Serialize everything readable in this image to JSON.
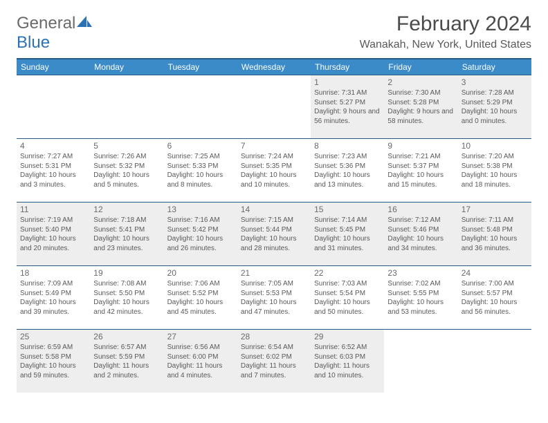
{
  "logo": {
    "text1": "General",
    "text2": "Blue"
  },
  "title": "February 2024",
  "location": "Wanakah, New York, United States",
  "headers": [
    "Sunday",
    "Monday",
    "Tuesday",
    "Wednesday",
    "Thursday",
    "Friday",
    "Saturday"
  ],
  "weeks": [
    [
      null,
      null,
      null,
      null,
      {
        "d": "1",
        "r": "7:31 AM",
        "s": "5:27 PM",
        "dl": "9 hours and 56 minutes."
      },
      {
        "d": "2",
        "r": "7:30 AM",
        "s": "5:28 PM",
        "dl": "9 hours and 58 minutes."
      },
      {
        "d": "3",
        "r": "7:28 AM",
        "s": "5:29 PM",
        "dl": "10 hours and 0 minutes."
      }
    ],
    [
      {
        "d": "4",
        "r": "7:27 AM",
        "s": "5:31 PM",
        "dl": "10 hours and 3 minutes."
      },
      {
        "d": "5",
        "r": "7:26 AM",
        "s": "5:32 PM",
        "dl": "10 hours and 5 minutes."
      },
      {
        "d": "6",
        "r": "7:25 AM",
        "s": "5:33 PM",
        "dl": "10 hours and 8 minutes."
      },
      {
        "d": "7",
        "r": "7:24 AM",
        "s": "5:35 PM",
        "dl": "10 hours and 10 minutes."
      },
      {
        "d": "8",
        "r": "7:23 AM",
        "s": "5:36 PM",
        "dl": "10 hours and 13 minutes."
      },
      {
        "d": "9",
        "r": "7:21 AM",
        "s": "5:37 PM",
        "dl": "10 hours and 15 minutes."
      },
      {
        "d": "10",
        "r": "7:20 AM",
        "s": "5:38 PM",
        "dl": "10 hours and 18 minutes."
      }
    ],
    [
      {
        "d": "11",
        "r": "7:19 AM",
        "s": "5:40 PM",
        "dl": "10 hours and 20 minutes."
      },
      {
        "d": "12",
        "r": "7:18 AM",
        "s": "5:41 PM",
        "dl": "10 hours and 23 minutes."
      },
      {
        "d": "13",
        "r": "7:16 AM",
        "s": "5:42 PM",
        "dl": "10 hours and 26 minutes."
      },
      {
        "d": "14",
        "r": "7:15 AM",
        "s": "5:44 PM",
        "dl": "10 hours and 28 minutes."
      },
      {
        "d": "15",
        "r": "7:14 AM",
        "s": "5:45 PM",
        "dl": "10 hours and 31 minutes."
      },
      {
        "d": "16",
        "r": "7:12 AM",
        "s": "5:46 PM",
        "dl": "10 hours and 34 minutes."
      },
      {
        "d": "17",
        "r": "7:11 AM",
        "s": "5:48 PM",
        "dl": "10 hours and 36 minutes."
      }
    ],
    [
      {
        "d": "18",
        "r": "7:09 AM",
        "s": "5:49 PM",
        "dl": "10 hours and 39 minutes."
      },
      {
        "d": "19",
        "r": "7:08 AM",
        "s": "5:50 PM",
        "dl": "10 hours and 42 minutes."
      },
      {
        "d": "20",
        "r": "7:06 AM",
        "s": "5:52 PM",
        "dl": "10 hours and 45 minutes."
      },
      {
        "d": "21",
        "r": "7:05 AM",
        "s": "5:53 PM",
        "dl": "10 hours and 47 minutes."
      },
      {
        "d": "22",
        "r": "7:03 AM",
        "s": "5:54 PM",
        "dl": "10 hours and 50 minutes."
      },
      {
        "d": "23",
        "r": "7:02 AM",
        "s": "5:55 PM",
        "dl": "10 hours and 53 minutes."
      },
      {
        "d": "24",
        "r": "7:00 AM",
        "s": "5:57 PM",
        "dl": "10 hours and 56 minutes."
      }
    ],
    [
      {
        "d": "25",
        "r": "6:59 AM",
        "s": "5:58 PM",
        "dl": "10 hours and 59 minutes."
      },
      {
        "d": "26",
        "r": "6:57 AM",
        "s": "5:59 PM",
        "dl": "11 hours and 2 minutes."
      },
      {
        "d": "27",
        "r": "6:56 AM",
        "s": "6:00 PM",
        "dl": "11 hours and 4 minutes."
      },
      {
        "d": "28",
        "r": "6:54 AM",
        "s": "6:02 PM",
        "dl": "11 hours and 7 minutes."
      },
      {
        "d": "29",
        "r": "6:52 AM",
        "s": "6:03 PM",
        "dl": "11 hours and 10 minutes."
      },
      null,
      null
    ]
  ],
  "labels": {
    "sunrise": "Sunrise: ",
    "sunset": "Sunset: ",
    "daylight": "Daylight: "
  },
  "colors": {
    "header_bg": "#3b8bc9",
    "header_border": "#2a5a84",
    "alt_bg": "#eeeeee",
    "text": "#595959",
    "title": "#4b4b4b",
    "logo_gray": "#6a6a6a",
    "logo_blue": "#2a72b5"
  }
}
